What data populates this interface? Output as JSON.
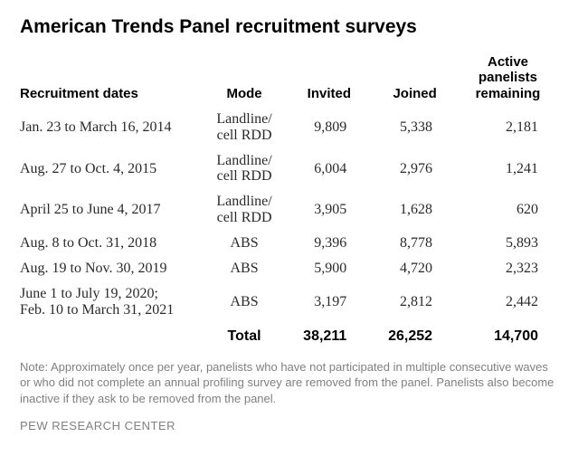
{
  "title": "American Trends Panel recruitment surveys",
  "columns": {
    "dates": "Recruitment dates",
    "mode": "Mode",
    "invited": "Invited",
    "joined": "Joined",
    "remaining": "Active panelists remaining"
  },
  "rows": [
    {
      "dates": "Jan. 23 to March 16, 2014",
      "mode": "Landline/\ncell RDD",
      "invited": "9,809",
      "joined": "5,338",
      "remaining": "2,181"
    },
    {
      "dates": "Aug. 27 to Oct. 4, 2015",
      "mode": "Landline/\ncell RDD",
      "invited": "6,004",
      "joined": "2,976",
      "remaining": "1,241"
    },
    {
      "dates": "April 25 to June 4, 2017",
      "mode": "Landline/\ncell RDD",
      "invited": "3,905",
      "joined": "1,628",
      "remaining": "620"
    },
    {
      "dates": "Aug. 8 to Oct. 31, 2018",
      "mode": "ABS",
      "invited": "9,396",
      "joined": "8,778",
      "remaining": "5,893"
    },
    {
      "dates": "Aug. 19 to Nov. 30, 2019",
      "mode": "ABS",
      "invited": "5,900",
      "joined": "4,720",
      "remaining": "2,323"
    },
    {
      "dates": "June 1 to July 19, 2020;\nFeb. 10 to March 31, 2021",
      "mode": "ABS",
      "invited": "3,197",
      "joined": "2,812",
      "remaining": "2,442"
    }
  ],
  "total": {
    "label": "Total",
    "invited": "38,211",
    "joined": "26,252",
    "remaining": "14,700"
  },
  "note": "Note: Approximately once per year, panelists who have not participated in multiple consecutive waves or who did not complete an annual profiling survey are removed from the panel. Panelists also become inactive if they ask to be removed from the panel.",
  "source": "PEW RESEARCH CENTER"
}
